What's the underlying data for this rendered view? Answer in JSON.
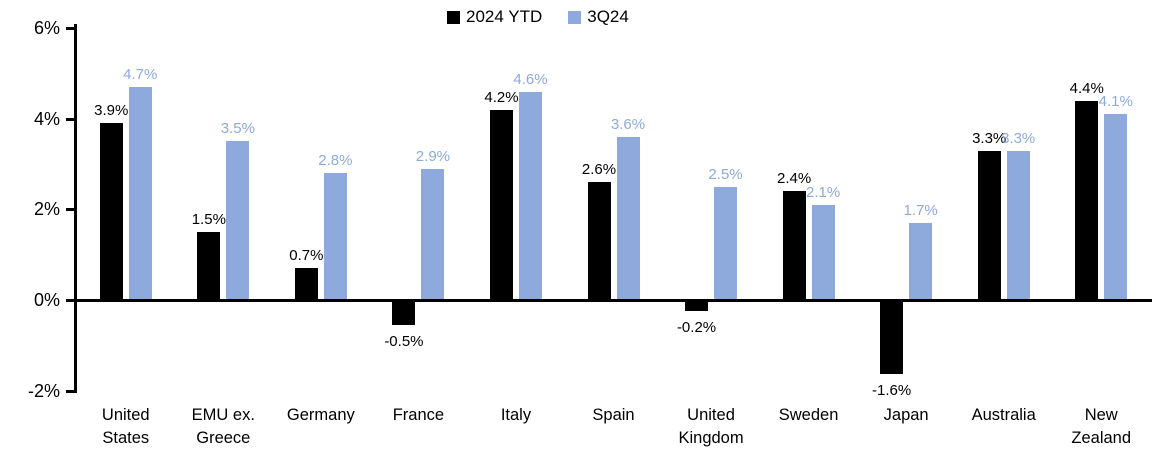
{
  "chart_data": {
    "type": "bar",
    "title": "",
    "categories": [
      "United States",
      "EMU ex. Greece",
      "Germany",
      "France",
      "Italy",
      "Spain",
      "United Kingdom",
      "Sweden",
      "Japan",
      "Australia",
      "New Zealand"
    ],
    "series": [
      {
        "name": "2024 YTD",
        "color": "#000000",
        "values": [
          3.9,
          1.5,
          0.7,
          -0.5,
          4.2,
          2.6,
          -0.2,
          2.4,
          -1.6,
          3.3,
          4.4
        ],
        "labels": [
          "3.9%",
          "1.5%",
          "0.7%",
          "-0.5%",
          "4.2%",
          "2.6%",
          "-0.2%",
          "2.4%",
          "-1.6%",
          "3.3%",
          "4.4%"
        ]
      },
      {
        "name": "3Q24",
        "color": "#8EA9DB",
        "values": [
          4.7,
          3.5,
          2.8,
          2.9,
          4.6,
          3.6,
          2.5,
          2.1,
          1.7,
          3.3,
          4.1
        ],
        "labels": [
          "4.7%",
          "3.5%",
          "2.8%",
          "2.9%",
          "4.6%",
          "3.6%",
          "2.5%",
          "2.1%",
          "1.7%",
          "3.3%",
          "4.1%"
        ]
      }
    ],
    "y_ticks": [
      {
        "label": "-2%",
        "value": -2
      },
      {
        "label": "0%",
        "value": 0
      },
      {
        "label": "2%",
        "value": 2
      },
      {
        "label": "4%",
        "value": 4
      },
      {
        "label": "6%",
        "value": 6
      }
    ],
    "ylim": [
      -2,
      6
    ],
    "grid": false,
    "legend_position": "top-center",
    "axis_color": "#000000",
    "background": "#FFFFFF"
  }
}
